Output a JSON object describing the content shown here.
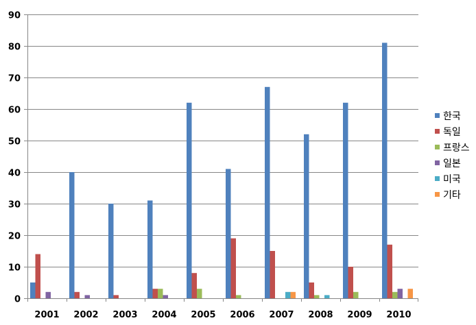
{
  "chart_data": {
    "type": "bar",
    "title": "",
    "xlabel": "",
    "ylabel": "",
    "ylim": [
      0,
      90
    ],
    "yticks": [
      0,
      10,
      20,
      30,
      40,
      50,
      60,
      70,
      80,
      90
    ],
    "grid": true,
    "legend_position": "right",
    "categories": [
      "2001",
      "2002",
      "2003",
      "2004",
      "2005",
      "2006",
      "2007",
      "2008",
      "2009",
      "2010"
    ],
    "series": [
      {
        "name": "한국",
        "color": "#4F81BD",
        "values": [
          5,
          40,
          30,
          31,
          62,
          41,
          67,
          52,
          62,
          81
        ]
      },
      {
        "name": "독일",
        "color": "#C0504D",
        "values": [
          14,
          2,
          1,
          3,
          8,
          19,
          15,
          5,
          10,
          17
        ]
      },
      {
        "name": "프랑스",
        "color": "#9BBB59",
        "values": [
          0,
          0,
          0,
          3,
          3,
          1,
          0,
          1,
          2,
          2
        ]
      },
      {
        "name": "일본",
        "color": "#8064A2",
        "values": [
          2,
          1,
          0,
          1,
          0,
          0,
          0,
          0,
          0,
          3
        ]
      },
      {
        "name": "미국",
        "color": "#4BACC6",
        "values": [
          0,
          0,
          0,
          0,
          0,
          0,
          2,
          1,
          0,
          0
        ]
      },
      {
        "name": "기타",
        "color": "#F79646",
        "values": [
          0,
          0,
          0,
          0,
          0,
          0,
          2,
          0,
          0,
          3
        ]
      }
    ]
  }
}
